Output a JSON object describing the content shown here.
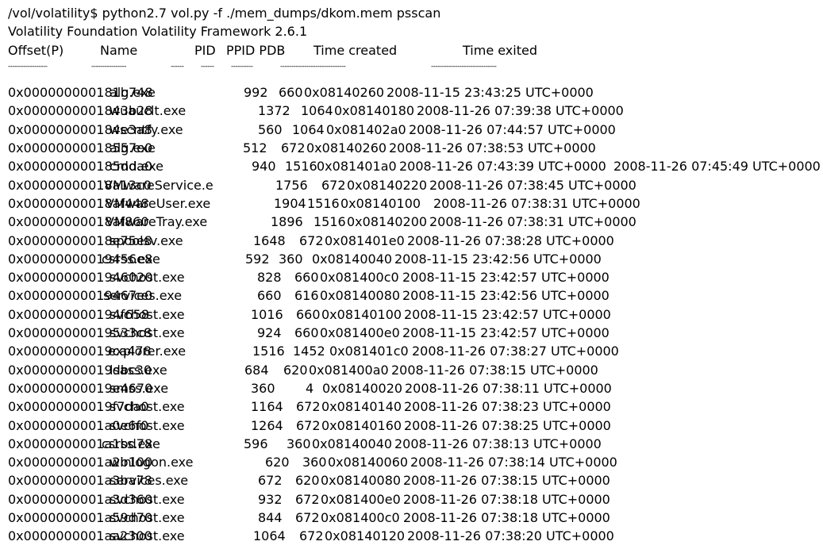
{
  "command_line": "/vol/volatility$ python2.7 vol.py -f ./mem_dumps/dkom.mem psscan",
  "banner": "Volatility Foundation Volatility Framework 2.6.1",
  "headers": {
    "offset": "Offset(P)",
    "name": "Name",
    "pid": "PID",
    "ppid_pdb": "PPID PDB",
    "time_created": "Time created",
    "time_exited": "Time exited"
  },
  "separators": {
    "offset": "------------------",
    "name": "----------------",
    "pid": "------",
    "ppid": "------",
    "pdb": "----------",
    "time_created": "------------------------------",
    "time_exited": "------------------------------"
  },
  "rows": [
    {
      "offset": "0x000000000181b748",
      "name": "alg.exe",
      "pid": "992",
      "ppid": "660",
      "pdb": "0x08140260",
      "time_created": "2008-11-15 23:43:25 UTC+0000",
      "time_exited": ""
    },
    {
      "offset": "0x0000000001843b28",
      "name": "wuauclt.exe",
      "pid": "1372",
      "ppid": "1064",
      "pdb": "0x08140180",
      "time_created": "2008-11-26 07:39:38 UTC+0000",
      "time_exited": ""
    },
    {
      "offset": "0x000000000184e3a8",
      "name": "wscntfy.exe",
      "pid": "560",
      "ppid": "1064",
      "pdb": "0x081402a0",
      "time_created": "2008-11-26 07:44:57 UTC+0000",
      "time_exited": ""
    },
    {
      "offset": "0x00000000018557e0",
      "name": "alg.exe",
      "pid": "512",
      "ppid": "672",
      "pdb": "0x08140260",
      "time_created": "2008-11-26 07:38:53 UTC+0000",
      "time_exited": ""
    },
    {
      "offset": "0x000000000185dda0",
      "name": "cmd.exe",
      "pid": "940",
      "ppid": "1516",
      "pdb": "0x081401a0",
      "time_created": "2008-11-26 07:43:39 UTC+0000",
      "time_exited": "2008-11-26 07:45:49 UTC+0000"
    },
    {
      "offset": "0x00000000018a13c0",
      "name": "VMwareService.e",
      "pid": "1756",
      "ppid": "672",
      "pdb": "0x08140220",
      "time_created": "2008-11-26 07:38:45 UTC+0000",
      "time_exited": ""
    },
    {
      "offset": "0x00000000018af448",
      "name": "VMwareUser.exe",
      "pid": "1904",
      "ppid": "1516",
      "pdb": "0x08140100",
      "time_created": "2008-11-26 07:38:31 UTC+0000",
      "time_exited": ""
    },
    {
      "offset": "0x00000000018af860",
      "name": "VMwareTray.exe",
      "pid": "1896",
      "ppid": "1516",
      "pdb": "0x08140200",
      "time_created": "2008-11-26 07:38:31 UTC+0000",
      "time_exited": ""
    },
    {
      "offset": "0x00000000018e75e8",
      "name": "spoolsv.exe",
      "pid": "1648",
      "ppid": "672",
      "pdb": "0x081401e0",
      "time_created": "2008-11-26 07:38:28 UTC+0000",
      "time_exited": ""
    },
    {
      "offset": "0x00000000019456e8",
      "name": "csrss.exe",
      "pid": "592",
      "ppid": "360",
      "pdb": "0x08140040",
      "time_created": "2008-11-15 23:42:56 UTC+0000",
      "time_exited": ""
    },
    {
      "offset": "0x0000000001946020",
      "name": "svchost.exe",
      "pid": "828",
      "ppid": "660",
      "pdb": "0x081400c0",
      "time_created": "2008-11-15 23:42:57 UTC+0000",
      "time_exited": ""
    },
    {
      "offset": "0x00000000019467e0",
      "name": "services.exe",
      "pid": "660",
      "ppid": "616",
      "pdb": "0x08140080",
      "time_created": "2008-11-15 23:42:56 UTC+0000",
      "time_exited": ""
    },
    {
      "offset": "0x000000000194f658",
      "name": "svchost.exe",
      "pid": "1016",
      "ppid": "660",
      "pdb": "0x08140100",
      "time_created": "2008-11-15 23:42:57 UTC+0000",
      "time_exited": ""
    },
    {
      "offset": "0x00000000019533c8",
      "name": "svchost.exe",
      "pid": "924",
      "ppid": "660",
      "pdb": "0x081400e0",
      "time_created": "2008-11-15 23:42:57 UTC+0000",
      "time_exited": ""
    },
    {
      "offset": "0x00000000019ca478",
      "name": "explorer.exe",
      "pid": "1516",
      "ppid": "1452",
      "pdb": "0x081401c0",
      "time_created": "2008-11-26 07:38:27 UTC+0000",
      "time_exited": ""
    },
    {
      "offset": "0x00000000019dbc30",
      "name": "lsass.exe",
      "pid": "684",
      "ppid": "620",
      "pdb": "0x081400a0",
      "time_created": "2008-11-26 07:38:15 UTC+0000",
      "time_exited": ""
    },
    {
      "offset": "0x00000000019e4670",
      "name": "smss.exe",
      "pid": "360",
      "ppid": "4",
      "pdb": "0x08140020",
      "time_created": "2008-11-26 07:38:11 UTC+0000",
      "time_exited": ""
    },
    {
      "offset": "0x00000000019f7da0",
      "name": "svchost.exe",
      "pid": "1164",
      "ppid": "672",
      "pdb": "0x08140140",
      "time_created": "2008-11-26 07:38:23 UTC+0000",
      "time_exited": ""
    },
    {
      "offset": "0x0000000001a0e6f0",
      "name": "svchost.exe",
      "pid": "1264",
      "ppid": "672",
      "pdb": "0x08140160",
      "time_created": "2008-11-26 07:38:25 UTC+0000",
      "time_exited": ""
    },
    {
      "offset": "0x0000000001a1bd78",
      "name": "csrss.exe",
      "pid": "596",
      "ppid": "360",
      "pdb": "0x08140040",
      "time_created": "2008-11-26 07:38:13 UTC+0000",
      "time_exited": ""
    },
    {
      "offset": "0x0000000001a2b100",
      "name": "winlogon.exe",
      "pid": "620",
      "ppid": "360",
      "pdb": "0x08140060",
      "time_created": "2008-11-26 07:38:14 UTC+0000",
      "time_exited": ""
    },
    {
      "offset": "0x0000000001a3ba78",
      "name": "services.exe",
      "pid": "672",
      "ppid": "620",
      "pdb": "0x08140080",
      "time_created": "2008-11-26 07:38:15 UTC+0000",
      "time_exited": ""
    },
    {
      "offset": "0x0000000001a3d360",
      "name": "svchost.exe",
      "pid": "932",
      "ppid": "672",
      "pdb": "0x081400e0",
      "time_created": "2008-11-26 07:38:18 UTC+0000",
      "time_exited": ""
    },
    {
      "offset": "0x0000000001a59d70",
      "name": "svchost.exe",
      "pid": "844",
      "ppid": "672",
      "pdb": "0x081400c0",
      "time_created": "2008-11-26 07:38:18 UTC+0000",
      "time_exited": ""
    },
    {
      "offset": "0x0000000001aa2300",
      "name": "svchost.exe",
      "pid": "1064",
      "ppid": "672",
      "pdb": "0x08140120",
      "time_created": "2008-11-26 07:38:20 UTC+0000",
      "time_exited": ""
    }
  ]
}
